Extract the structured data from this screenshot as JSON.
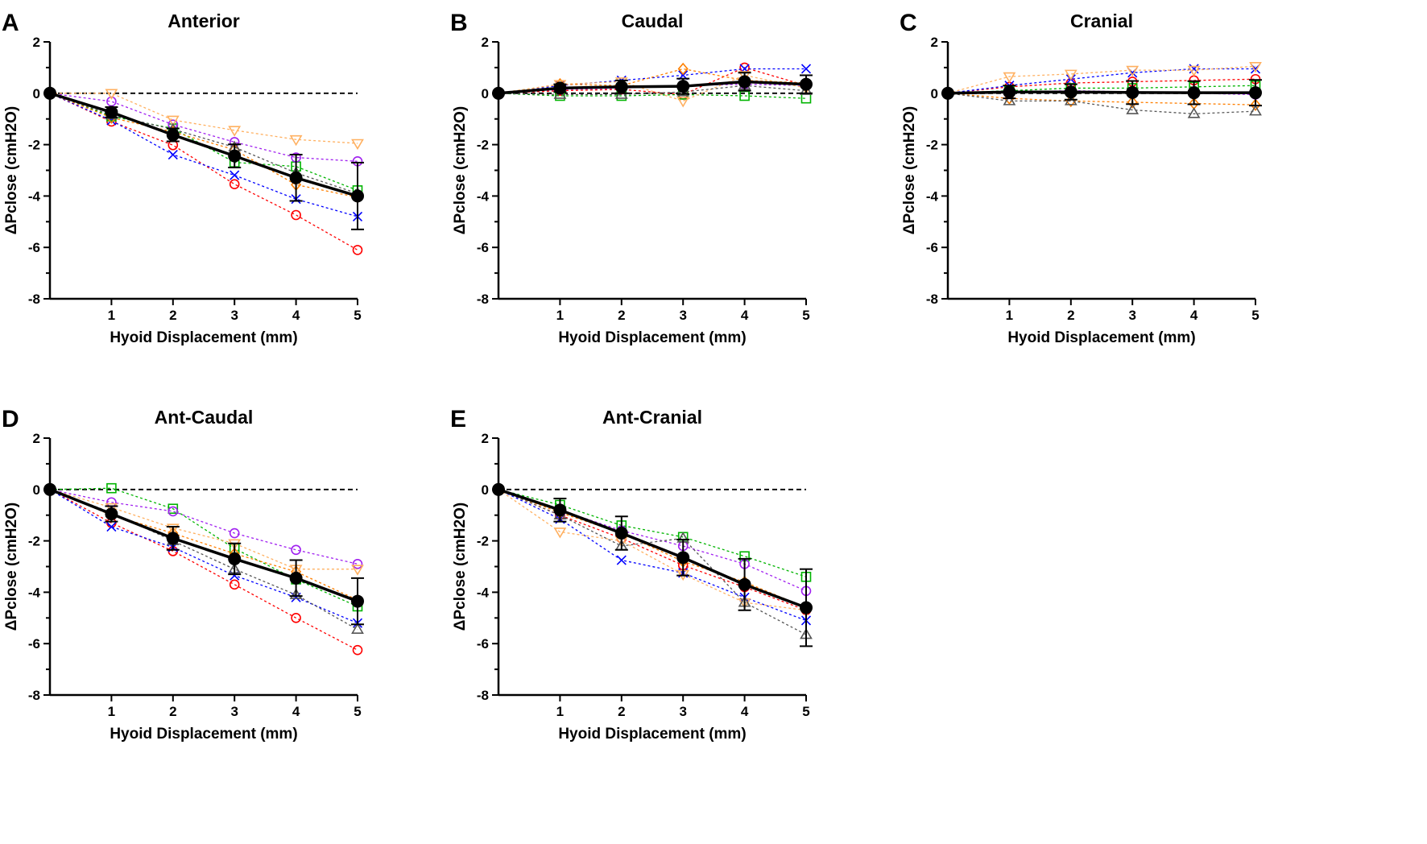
{
  "chart_data": [
    {
      "type": "line",
      "panel": "A",
      "title": "Anterior",
      "xlabel": "Hyoid Displacement (mm)",
      "ylabel": "ΔPclose (cmH2O)",
      "x": [
        0,
        1,
        2,
        3,
        4,
        5
      ],
      "xticks": [
        "1",
        "2",
        "3",
        "4",
        "5"
      ],
      "yticks": [
        "2",
        "0",
        "-2",
        "-4",
        "-6",
        "-8"
      ],
      "ylim": [
        -8,
        2
      ],
      "series": [
        {
          "marker": "circle",
          "color": "#ff0000",
          "values": [
            0,
            -1.1,
            -2.02,
            -3.54,
            -4.74,
            -6.1
          ]
        },
        {
          "marker": "x",
          "color": "#0000ff",
          "values": [
            0,
            -1.06,
            -2.39,
            -3.19,
            -4.12,
            -4.8
          ]
        },
        {
          "marker": "square",
          "color": "#00b400",
          "values": [
            0,
            -0.9,
            -1.37,
            -2.69,
            -2.85,
            -3.78
          ]
        },
        {
          "marker": "circle",
          "color": "#a020f0",
          "values": [
            0,
            -0.32,
            -1.22,
            -1.9,
            -2.5,
            -2.65
          ]
        },
        {
          "marker": "diamond",
          "color": "#ff7f00",
          "values": [
            0,
            -0.95,
            -1.5,
            -2.2,
            -3.56,
            -4.05
          ]
        },
        {
          "marker": "triangle-down",
          "color": "#ffb060",
          "values": [
            0,
            0,
            -1.04,
            -1.44,
            -1.8,
            -1.95
          ]
        },
        {
          "marker": "triangle-up",
          "color": "#555555",
          "values": [
            0,
            -0.85,
            -1.4,
            -2.1,
            -3.1,
            -3.9
          ]
        }
      ],
      "mean": {
        "values": [
          0,
          -0.74,
          -1.62,
          -2.44,
          -3.29,
          -4.0
        ],
        "error": [
          0,
          0.2,
          0.25,
          0.45,
          0.9,
          1.3
        ]
      }
    },
    {
      "type": "line",
      "panel": "B",
      "title": "Caudal",
      "xlabel": "Hyoid Displacement (mm)",
      "ylabel": "ΔPclose (cmH2O)",
      "x": [
        0,
        1,
        2,
        3,
        4,
        5
      ],
      "xticks": [
        "1",
        "2",
        "3",
        "4",
        "5"
      ],
      "yticks": [
        "2",
        "0",
        "-2",
        "-4",
        "-6",
        "-8"
      ],
      "ylim": [
        -8,
        2
      ],
      "series": [
        {
          "marker": "circle",
          "color": "#ff0000",
          "values": [
            0,
            0.1,
            0.15,
            -0.05,
            1.0,
            0.3
          ]
        },
        {
          "marker": "x",
          "color": "#0000ff",
          "values": [
            0,
            0.3,
            0.5,
            0.7,
            0.95,
            0.95
          ]
        },
        {
          "marker": "square",
          "color": "#00b400",
          "values": [
            0,
            -0.1,
            -0.1,
            -0.05,
            -0.1,
            -0.2
          ]
        },
        {
          "marker": "circle",
          "color": "#a020f0",
          "values": [
            0,
            0.15,
            0.2,
            0.3,
            0.35,
            0.3
          ]
        },
        {
          "marker": "diamond",
          "color": "#ff7f00",
          "values": [
            0,
            0.35,
            0.3,
            0.95,
            0.5,
            0.4
          ]
        },
        {
          "marker": "triangle-down",
          "color": "#ffb060",
          "values": [
            0,
            0.35,
            0.45,
            -0.3,
            0.7,
            0.2
          ]
        },
        {
          "marker": "triangle-up",
          "color": "#555555",
          "values": [
            0,
            -0.05,
            -0.05,
            0.05,
            0.3,
            0.1
          ]
        }
      ],
      "mean": {
        "values": [
          0,
          0.2,
          0.25,
          0.27,
          0.45,
          0.35
        ],
        "error": [
          0,
          0.15,
          0.25,
          0.3,
          0.35,
          0.35
        ]
      }
    },
    {
      "type": "line",
      "panel": "C",
      "title": "Cranial",
      "xlabel": "Hyoid Displacement (mm)",
      "ylabel": "ΔPclose (cmH2O)",
      "x": [
        0,
        1,
        2,
        3,
        4,
        5
      ],
      "xticks": [
        "1",
        "2",
        "3",
        "4",
        "5"
      ],
      "yticks": [
        "2",
        "0",
        "-2",
        "-4",
        "-6",
        "-8"
      ],
      "ylim": [
        -8,
        2
      ],
      "series": [
        {
          "marker": "circle",
          "color": "#ff0000",
          "values": [
            0,
            0.25,
            0.4,
            0.45,
            0.5,
            0.55
          ]
        },
        {
          "marker": "x",
          "color": "#0000ff",
          "values": [
            0,
            0.3,
            0.55,
            0.8,
            0.95,
            0.95
          ]
        },
        {
          "marker": "square",
          "color": "#00b400",
          "values": [
            0,
            0.1,
            0.2,
            0.2,
            0.25,
            0.3
          ]
        },
        {
          "marker": "circle",
          "color": "#a020f0",
          "values": [
            0,
            0.05,
            0.1,
            0.05,
            0.0,
            -0.05
          ]
        },
        {
          "marker": "diamond",
          "color": "#ff7f00",
          "values": [
            0,
            -0.2,
            -0.3,
            -0.35,
            -0.4,
            -0.45
          ]
        },
        {
          "marker": "triangle-down",
          "color": "#ffb060",
          "values": [
            0,
            0.65,
            0.75,
            0.9,
            0.9,
            1.05
          ]
        },
        {
          "marker": "triangle-up",
          "color": "#555555",
          "values": [
            0,
            -0.3,
            -0.3,
            -0.65,
            -0.8,
            -0.7
          ]
        }
      ],
      "mean": {
        "values": [
          0,
          0.05,
          0.05,
          0.03,
          0.02,
          0.02
        ],
        "error": [
          0,
          0.25,
          0.3,
          0.45,
          0.45,
          0.5
        ]
      }
    },
    {
      "type": "line",
      "panel": "D",
      "title": "Ant-Caudal",
      "xlabel": "Hyoid Displacement (mm)",
      "ylabel": "ΔPclose (cmH2O)",
      "x": [
        0,
        1,
        2,
        3,
        4,
        5
      ],
      "xticks": [
        "1",
        "2",
        "3",
        "4",
        "5"
      ],
      "yticks": [
        "2",
        "0",
        "-2",
        "-4",
        "-6",
        "-8"
      ],
      "ylim": [
        -8,
        2
      ],
      "series": [
        {
          "marker": "circle",
          "color": "#ff0000",
          "values": [
            0,
            -1.3,
            -2.4,
            -3.7,
            -5.0,
            -6.25
          ]
        },
        {
          "marker": "x",
          "color": "#0000ff",
          "values": [
            0,
            -1.45,
            -2.25,
            -3.35,
            -4.2,
            -5.2
          ]
        },
        {
          "marker": "square",
          "color": "#00b400",
          "values": [
            0,
            0.05,
            -0.75,
            -2.3,
            -3.5,
            -4.55
          ]
        },
        {
          "marker": "circle",
          "color": "#a020f0",
          "values": [
            0,
            -0.5,
            -0.85,
            -1.7,
            -2.35,
            -2.9
          ]
        },
        {
          "marker": "diamond",
          "color": "#ff7f00",
          "values": [
            0,
            -1.0,
            -1.7,
            -2.5,
            -3.2,
            -4.3
          ]
        },
        {
          "marker": "triangle-down",
          "color": "#ffb060",
          "values": [
            0,
            -0.7,
            -1.5,
            -2.1,
            -3.1,
            -3.1
          ]
        },
        {
          "marker": "triangle-up",
          "color": "#555555",
          "values": [
            0,
            -0.9,
            -2.0,
            -3.1,
            -4.1,
            -5.45
          ]
        }
      ],
      "mean": {
        "values": [
          0,
          -0.95,
          -1.9,
          -2.7,
          -3.45,
          -4.35
        ],
        "error": [
          0,
          0.3,
          0.45,
          0.6,
          0.7,
          0.9
        ]
      }
    },
    {
      "type": "line",
      "panel": "E",
      "title": "Ant-Cranial",
      "xlabel": "Hyoid Displacement (mm)",
      "ylabel": "ΔPclose (cmH2O)",
      "x": [
        0,
        1,
        2,
        3,
        4,
        5
      ],
      "xticks": [
        "1",
        "2",
        "3",
        "4",
        "5"
      ],
      "yticks": [
        "2",
        "0",
        "-2",
        "-4",
        "-6",
        "-8"
      ],
      "ylim": [
        -8,
        2
      ],
      "series": [
        {
          "marker": "circle",
          "color": "#ff0000",
          "values": [
            0,
            -1.0,
            -1.9,
            -2.95,
            -3.8,
            -4.7
          ]
        },
        {
          "marker": "x",
          "color": "#0000ff",
          "values": [
            0,
            -1.15,
            -2.75,
            -3.25,
            -4.2,
            -5.1
          ]
        },
        {
          "marker": "square",
          "color": "#00b400",
          "values": [
            0,
            -0.6,
            -1.4,
            -1.85,
            -2.6,
            -3.4
          ]
        },
        {
          "marker": "circle",
          "color": "#a020f0",
          "values": [
            0,
            -0.8,
            -1.6,
            -2.2,
            -2.9,
            -3.95
          ]
        },
        {
          "marker": "diamond",
          "color": "#ff7f00",
          "values": [
            0,
            -0.9,
            -1.7,
            -2.8,
            -3.6,
            -4.6
          ]
        },
        {
          "marker": "triangle-down",
          "color": "#ffb060",
          "values": [
            0,
            -1.65,
            -2.0,
            -3.3,
            -4.4,
            -4.7
          ]
        },
        {
          "marker": "triangle-up",
          "color": "#555555",
          "values": [
            0,
            -1.0,
            -2.2,
            -1.9,
            -4.4,
            -5.65
          ]
        }
      ],
      "mean": {
        "values": [
          0,
          -0.8,
          -1.7,
          -2.65,
          -3.7,
          -4.6
        ],
        "error": [
          0,
          0.45,
          0.65,
          0.7,
          1.0,
          1.5
        ]
      }
    }
  ]
}
